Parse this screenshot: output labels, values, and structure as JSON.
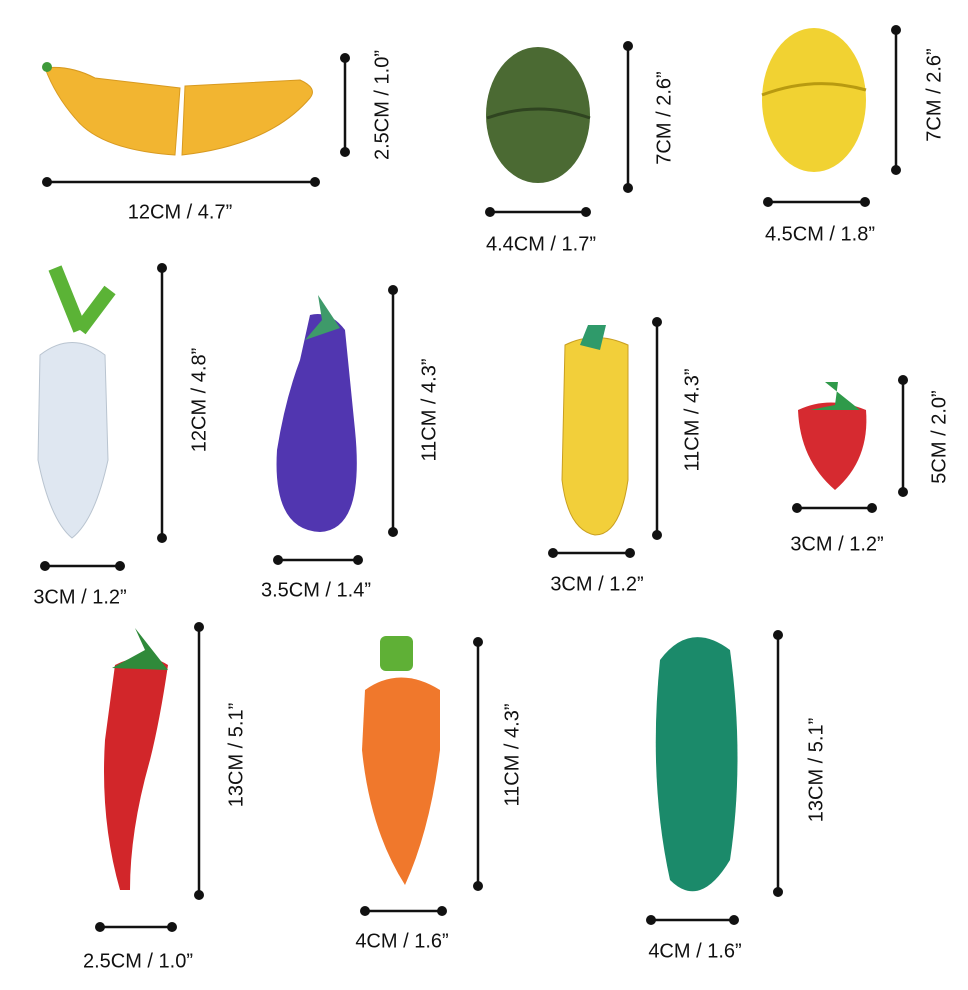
{
  "items": [
    {
      "width": "12CM / 4.7”",
      "height": "2.5CM / 1.0”"
    },
    {
      "width": "4.4CM / 1.7”",
      "height": "7CM / 2.6”"
    },
    {
      "width": "4.5CM / 1.8”",
      "height": "7CM / 2.6”"
    },
    {
      "width": "3CM / 1.2”",
      "height": "12CM / 4.8”"
    },
    {
      "width": "3.5CM / 1.4”",
      "height": "11CM / 4.3”"
    },
    {
      "width": "3CM / 1.2”",
      "height": "11CM / 4.3”"
    },
    {
      "width": "3CM / 1.2”",
      "height": "5CM / 2.0”"
    },
    {
      "width": "2.5CM / 1.0”",
      "height": "13CM / 5.1”"
    },
    {
      "width": "4CM / 1.6”",
      "height": "11CM / 4.3”"
    },
    {
      "width": "4CM / 1.6”",
      "height": "13CM / 5.1”"
    }
  ]
}
